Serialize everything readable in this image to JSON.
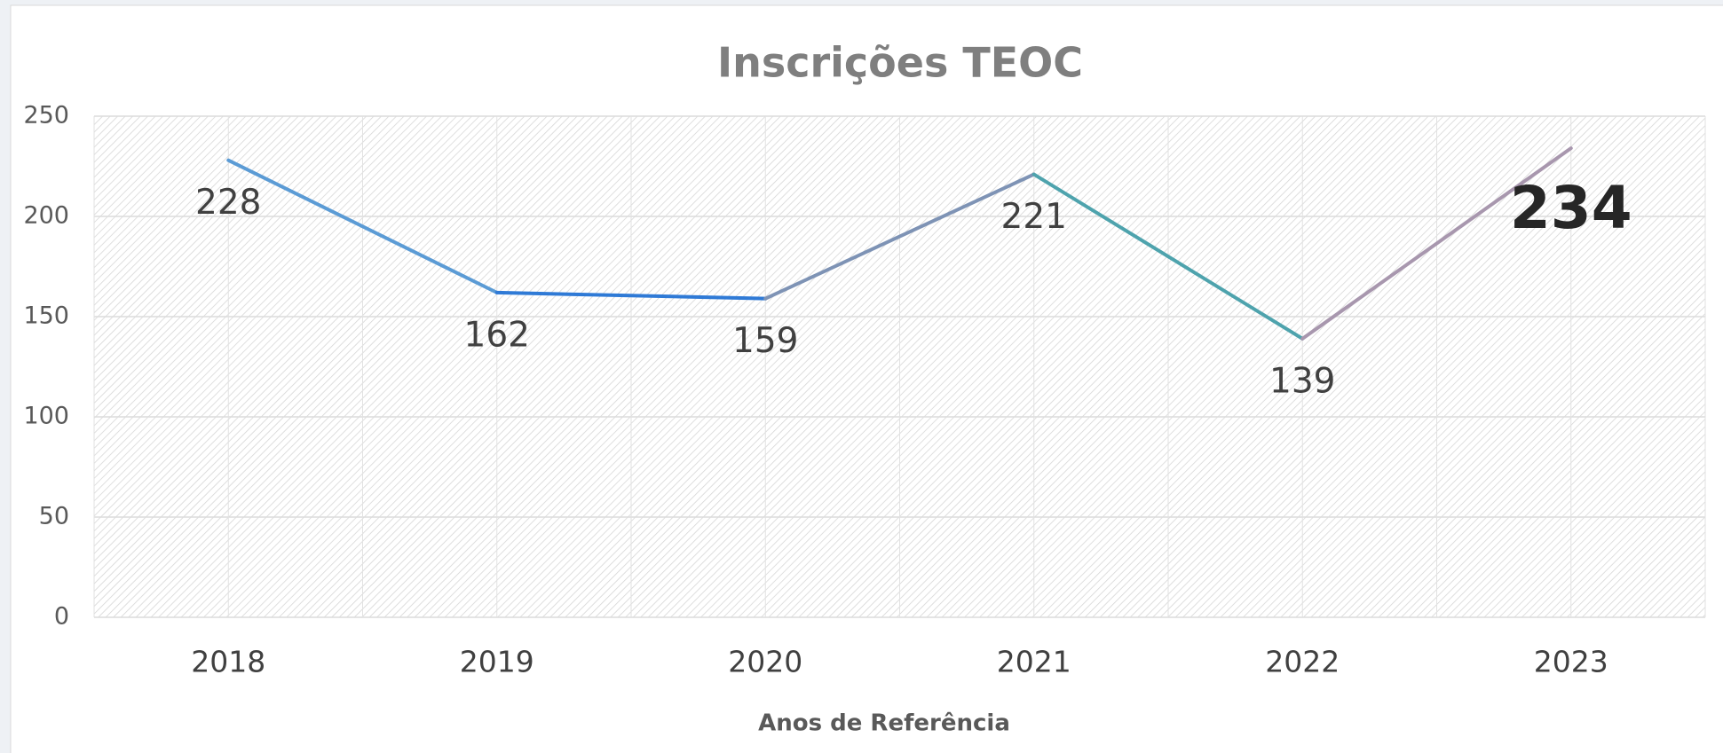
{
  "chart_data": {
    "type": "line",
    "title": "Inscrições TEOC",
    "x_label": "Anos de Referência",
    "categories": [
      "2018",
      "2019",
      "2020",
      "2021",
      "2022",
      "2023"
    ],
    "series": [
      {
        "name": "Inscrições",
        "values": [
          228,
          162,
          159,
          221,
          139,
          234
        ],
        "segment_colors": [
          "#5b9bd5",
          "#2f7ad6",
          "#7e93b5",
          "#4ea3ad",
          "#a897ae"
        ]
      }
    ],
    "highlight_index": 5,
    "ylim": [
      0,
      250
    ],
    "yticks": [
      0,
      50,
      100,
      150,
      200,
      250
    ],
    "grid": true
  }
}
